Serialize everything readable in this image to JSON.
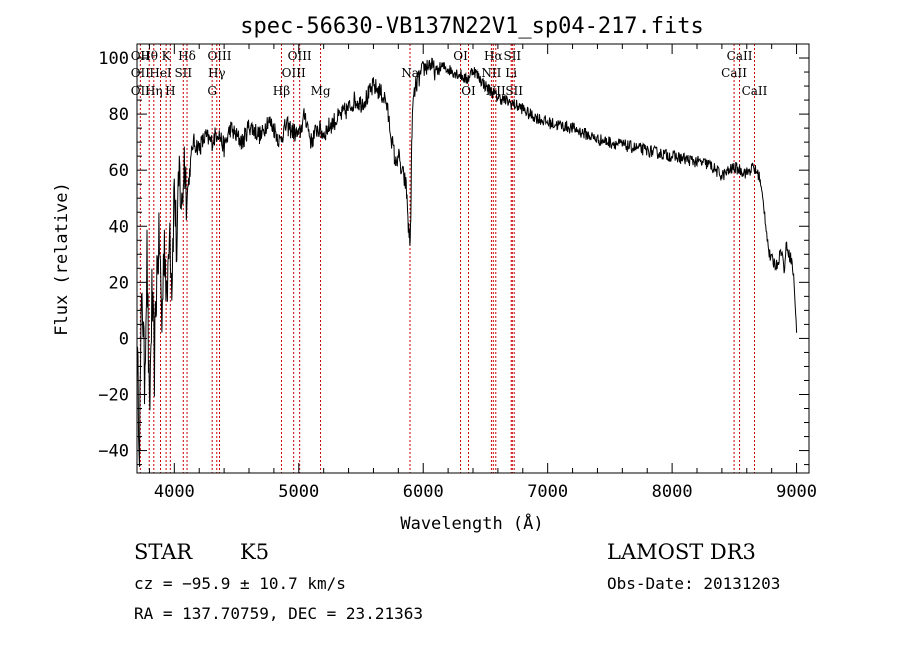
{
  "chart_data": {
    "type": "line",
    "title": "spec-56630-VB137N22V1_sp04-217.fits",
    "xlabel": "Wavelength (Å)",
    "ylabel": "Flux (relative)",
    "xlim": [
      3700,
      9100
    ],
    "ylim": [
      -48,
      105
    ],
    "xticks": [
      4000,
      5000,
      6000,
      7000,
      8000,
      9000
    ],
    "xtick_labels": [
      "4000",
      "5000",
      "6000",
      "7000",
      "8000",
      "9000"
    ],
    "yticks": [
      -40,
      -20,
      0,
      20,
      40,
      60,
      80,
      100
    ],
    "ytick_labels": [
      "−40",
      "−20",
      "0",
      "20",
      "40",
      "60",
      "80",
      "100"
    ],
    "series": [
      {
        "name": "flux",
        "x": [
          3700,
          3720,
          3740,
          3760,
          3780,
          3800,
          3820,
          3840,
          3860,
          3880,
          3900,
          3920,
          3940,
          3960,
          3980,
          4000,
          4020,
          4040,
          4060,
          4080,
          4100,
          4150,
          4200,
          4250,
          4300,
          4350,
          4400,
          4450,
          4500,
          4550,
          4600,
          4650,
          4700,
          4750,
          4800,
          4850,
          4860,
          4900,
          4950,
          5000,
          5050,
          5100,
          5150,
          5200,
          5250,
          5300,
          5350,
          5400,
          5450,
          5500,
          5550,
          5600,
          5650,
          5700,
          5750,
          5780,
          5800,
          5820,
          5840,
          5860,
          5870,
          5880,
          5890,
          5895,
          5900,
          5905,
          5910,
          5920,
          5940,
          5960,
          5980,
          6000,
          6050,
          6100,
          6150,
          6200,
          6250,
          6300,
          6350,
          6400,
          6450,
          6500,
          6550,
          6600,
          6650,
          6700,
          6750,
          6800,
          6850,
          6900,
          6950,
          7000,
          7100,
          7200,
          7300,
          7400,
          7500,
          7600,
          7700,
          7800,
          7900,
          8000,
          8100,
          8200,
          8300,
          8400,
          8500,
          8550,
          8600,
          8650,
          8700,
          8720,
          8740,
          8760,
          8780,
          8800,
          8820,
          8840,
          8860,
          8880,
          8900,
          8920,
          8940,
          8960,
          8980,
          9000
        ],
        "y": [
          -5,
          -35,
          20,
          -15,
          30,
          -30,
          15,
          -10,
          25,
          35,
          5,
          38,
          10,
          45,
          20,
          55,
          30,
          60,
          45,
          65,
          50,
          70,
          68,
          72,
          70,
          74,
          68,
          75,
          72,
          70,
          76,
          74,
          72,
          78,
          75,
          70,
          72,
          76,
          74,
          72,
          80,
          70,
          75,
          73,
          76,
          78,
          80,
          82,
          85,
          84,
          86,
          90,
          88,
          85,
          70,
          62,
          66,
          60,
          58,
          55,
          50,
          40,
          36,
          34,
          45,
          60,
          75,
          85,
          90,
          92,
          94,
          96,
          98,
          95,
          97,
          96,
          95,
          94,
          92,
          96,
          93,
          90,
          88,
          86,
          85,
          84,
          83,
          82,
          80,
          79,
          78,
          77,
          76,
          75,
          73,
          71,
          70,
          69,
          68,
          67,
          66,
          65,
          64,
          63,
          62,
          58,
          61,
          60,
          59,
          61,
          58,
          52,
          46,
          38,
          30,
          28,
          27,
          26,
          29,
          32,
          24,
          34,
          30,
          28,
          20,
          2
        ]
      }
    ],
    "lines": [
      {
        "wl": 3727,
        "top": "OII",
        "mid": "OII",
        "bot": "OII"
      },
      {
        "wl": 3798,
        "top": "Hθ",
        "mid": "",
        "bot": ""
      },
      {
        "wl": 3835,
        "top": "",
        "mid": "",
        "bot": "Hη"
      },
      {
        "wl": 3889,
        "top": "",
        "mid": "HeI",
        "bot": ""
      },
      {
        "wl": 3934,
        "top": "K",
        "mid": "",
        "bot": ""
      },
      {
        "wl": 3968,
        "top": "",
        "mid": "",
        "bot": "H"
      },
      {
        "wl": 4072,
        "top": "",
        "mid": "SII",
        "bot": ""
      },
      {
        "wl": 4102,
        "top": "Hδ",
        "mid": "",
        "bot": ""
      },
      {
        "wl": 4304,
        "top": "",
        "mid": "",
        "bot": "G"
      },
      {
        "wl": 4341,
        "top": "",
        "mid": "Hγ",
        "bot": ""
      },
      {
        "wl": 4363,
        "top": "OIII",
        "mid": "",
        "bot": ""
      },
      {
        "wl": 4861,
        "top": "",
        "mid": "",
        "bot": "Hβ"
      },
      {
        "wl": 4959,
        "top": "",
        "mid": "OIII",
        "bot": ""
      },
      {
        "wl": 5007,
        "top": "OIII",
        "mid": "",
        "bot": ""
      },
      {
        "wl": 5175,
        "top": "",
        "mid": "",
        "bot": "Mg"
      },
      {
        "wl": 5894,
        "top": "",
        "mid": "Na",
        "bot": ""
      },
      {
        "wl": 6300,
        "top": "OI",
        "mid": "",
        "bot": ""
      },
      {
        "wl": 6364,
        "top": "",
        "mid": "",
        "bot": "OI"
      },
      {
        "wl": 6548,
        "top": "",
        "mid": "NII",
        "bot": ""
      },
      {
        "wl": 6563,
        "top": "Hα",
        "mid": "",
        "bot": ""
      },
      {
        "wl": 6583,
        "top": "",
        "mid": "",
        "bot": "NII"
      },
      {
        "wl": 6707,
        "top": "",
        "mid": "Li",
        "bot": ""
      },
      {
        "wl": 6716,
        "top": "SII",
        "mid": "",
        "bot": ""
      },
      {
        "wl": 6731,
        "top": "",
        "mid": "",
        "bot": "SII"
      },
      {
        "wl": 8498,
        "top": "",
        "mid": "CaII",
        "bot": ""
      },
      {
        "wl": 8542,
        "top": "CaII",
        "mid": "",
        "bot": ""
      },
      {
        "wl": 8662,
        "top": "",
        "mid": "",
        "bot": "CaII"
      }
    ]
  },
  "info": {
    "class": "STAR",
    "subclass": "K5",
    "cz": "cz = −95.9 ± 10.7 km/s",
    "radec": "RA = 137.70759, DEC =  23.21363",
    "survey": "LAMOST DR3",
    "obsdate": "Obs-Date: 20131203"
  },
  "colors": {
    "axis": "#000000",
    "spectrum": "#000000",
    "line_marker": "#cc0000"
  }
}
